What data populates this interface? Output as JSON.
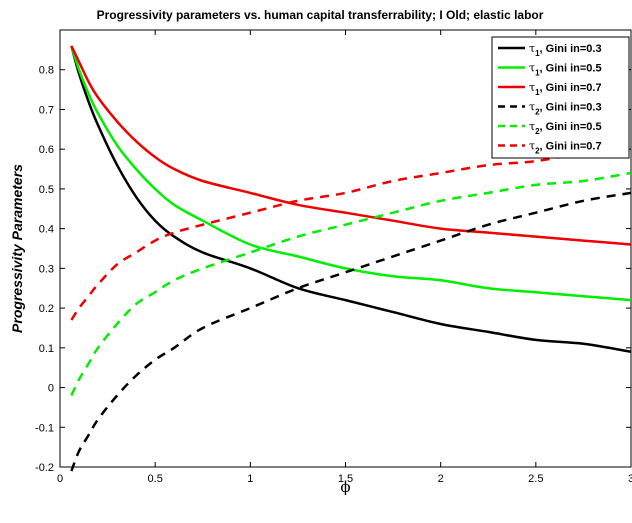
{
  "chart_data": {
    "type": "line",
    "title": "Progressivity parameters vs. human capital transferrability; I Old; elastic labor",
    "xlabel": "ϕ",
    "ylabel": "Progressivity Parameters",
    "xlim": [
      0,
      3
    ],
    "ylim": [
      -0.2,
      0.9
    ],
    "xticks": [
      "0",
      "0.5",
      "1",
      "1.5",
      "2",
      "2.5",
      "3"
    ],
    "yticks": [
      "-0.2",
      "-0.1",
      "0",
      "0.1",
      "0.2",
      "0.3",
      "0.4",
      "0.5",
      "0.6",
      "0.7",
      "0.8"
    ],
    "grid": false,
    "legend_position": "top-right",
    "x": [
      0.06,
      0.1,
      0.15,
      0.2,
      0.3,
      0.4,
      0.5,
      0.6,
      0.75,
      1.0,
      1.25,
      1.5,
      1.75,
      2.0,
      2.25,
      2.5,
      2.75,
      3.0
    ],
    "series": [
      {
        "name_main": "τ",
        "name_sub": "1",
        "name_rest": ", Gini in=0.3",
        "color": "#000000",
        "dash": "solid",
        "values": [
          0.86,
          0.79,
          0.72,
          0.66,
          0.56,
          0.48,
          0.42,
          0.38,
          0.34,
          0.3,
          0.25,
          0.22,
          0.19,
          0.16,
          0.14,
          0.12,
          0.11,
          0.09
        ]
      },
      {
        "name_main": "τ",
        "name_sub": "1",
        "name_rest": ", Gini in=0.5",
        "color": "#00ee00",
        "dash": "solid",
        "values": [
          0.86,
          0.8,
          0.74,
          0.69,
          0.61,
          0.55,
          0.5,
          0.46,
          0.42,
          0.36,
          0.33,
          0.3,
          0.28,
          0.27,
          0.25,
          0.24,
          0.23,
          0.22
        ]
      },
      {
        "name_main": "τ",
        "name_sub": "1",
        "name_rest": ", Gini in=0.7",
        "color": "#ee0000",
        "dash": "solid",
        "values": [
          0.86,
          0.82,
          0.77,
          0.73,
          0.67,
          0.62,
          0.58,
          0.55,
          0.52,
          0.49,
          0.46,
          0.44,
          0.42,
          0.4,
          0.39,
          0.38,
          0.37,
          0.36
        ]
      },
      {
        "name_main": "τ",
        "name_sub": "2",
        "name_rest": ", Gini in=0.3",
        "color": "#000000",
        "dash": "dashed",
        "values": [
          -0.21,
          -0.16,
          -0.12,
          -0.08,
          -0.02,
          0.03,
          0.07,
          0.1,
          0.15,
          0.2,
          0.25,
          0.29,
          0.33,
          0.37,
          0.41,
          0.44,
          0.47,
          0.49
        ]
      },
      {
        "name_main": "τ",
        "name_sub": "2",
        "name_rest": ", Gini in=0.5",
        "color": "#00ee00",
        "dash": "dashed",
        "values": [
          -0.02,
          0.02,
          0.06,
          0.1,
          0.16,
          0.21,
          0.24,
          0.27,
          0.3,
          0.34,
          0.38,
          0.41,
          0.44,
          0.47,
          0.49,
          0.51,
          0.52,
          0.54
        ]
      },
      {
        "name_main": "τ",
        "name_sub": "2",
        "name_rest": ", Gini in=0.7",
        "color": "#ee0000",
        "dash": "dashed",
        "values": [
          0.17,
          0.2,
          0.23,
          0.26,
          0.31,
          0.34,
          0.37,
          0.39,
          0.41,
          0.44,
          0.47,
          0.49,
          0.52,
          0.54,
          0.56,
          0.57,
          0.59,
          0.6
        ]
      }
    ]
  }
}
